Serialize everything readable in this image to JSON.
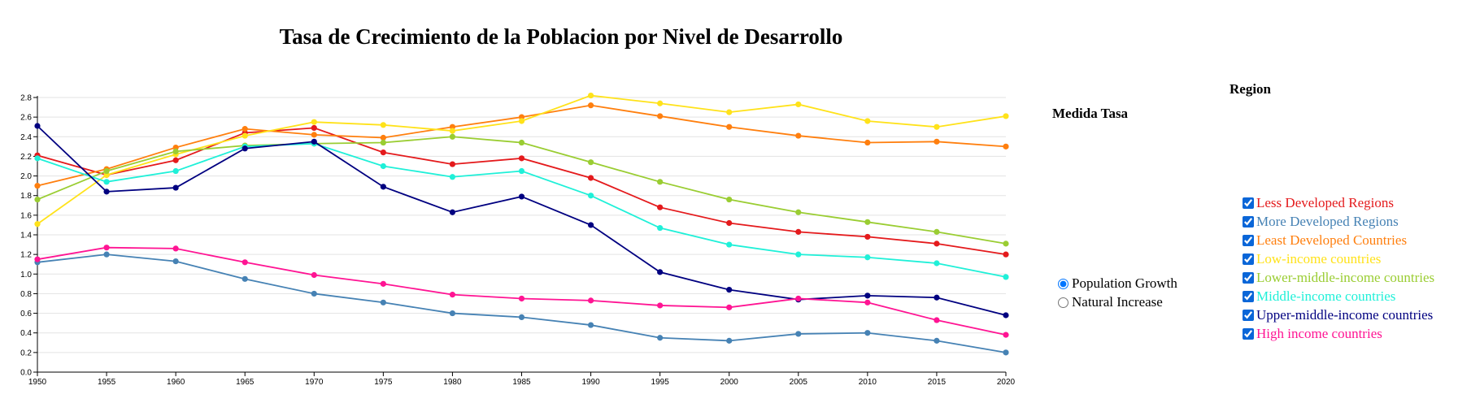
{
  "page": {
    "title": "Tasa de Crecimiento de la Poblacion por Nivel de Desarrollo"
  },
  "measure": {
    "title": "Medida Tasa",
    "options": [
      {
        "label": "Population Growth",
        "checked": true
      },
      {
        "label": "Natural Increase",
        "checked": false
      }
    ]
  },
  "region": {
    "title": "Region",
    "items": [
      {
        "label": "Less Developed Regions",
        "color": "#e41a1c",
        "checked": true
      },
      {
        "label": "More Developed Regions",
        "color": "#4682b4",
        "checked": true
      },
      {
        "label": "Least Developed Countries",
        "color": "#ff7f0e",
        "checked": true
      },
      {
        "label": "Low-income countries",
        "color": "#ffe21a",
        "checked": true
      },
      {
        "label": "Lower-middle-income countries",
        "color": "#9acd32",
        "checked": true
      },
      {
        "label": "Middle-income countries",
        "color": "#1ff0d8",
        "checked": true
      },
      {
        "label": "Upper-middle-income countries",
        "color": "#000080",
        "checked": true
      },
      {
        "label": "High income countries",
        "color": "#ff1493",
        "checked": true
      }
    ]
  },
  "chart_data": {
    "type": "line",
    "title": "Tasa de Crecimiento de la Poblacion por Nivel de Desarrollo",
    "x": [
      1950,
      1955,
      1960,
      1965,
      1970,
      1975,
      1980,
      1985,
      1990,
      1995,
      2000,
      2005,
      2010,
      2015,
      2020
    ],
    "xlim": [
      1950,
      2020
    ],
    "ylim": [
      0.0,
      2.8
    ],
    "yticks": [
      0.0,
      0.2,
      0.4,
      0.6,
      0.8,
      1.0,
      1.2,
      1.4,
      1.6,
      1.8,
      2.0,
      2.2,
      2.4,
      2.6,
      2.8
    ],
    "grid": true,
    "series": [
      {
        "name": "Less Developed Regions",
        "color": "#e41a1c",
        "values": [
          2.21,
          2.01,
          2.16,
          2.44,
          2.49,
          2.24,
          2.12,
          2.18,
          1.98,
          1.68,
          1.52,
          1.43,
          1.38,
          1.31,
          1.2
        ]
      },
      {
        "name": "More Developed Regions",
        "color": "#4682b4",
        "values": [
          1.12,
          1.2,
          1.13,
          0.95,
          0.8,
          0.71,
          0.6,
          0.56,
          0.48,
          0.35,
          0.32,
          0.39,
          0.4,
          0.32,
          0.2
        ]
      },
      {
        "name": "Least Developed Countries",
        "color": "#ff7f0e",
        "values": [
          1.9,
          2.07,
          2.29,
          2.48,
          2.42,
          2.39,
          2.5,
          2.6,
          2.72,
          2.61,
          2.5,
          2.41,
          2.34,
          2.35,
          2.3
        ]
      },
      {
        "name": "Low-income countries",
        "color": "#ffe21a",
        "values": [
          1.51,
          2.01,
          2.22,
          2.41,
          2.55,
          2.52,
          2.46,
          2.56,
          2.82,
          2.74,
          2.65,
          2.73,
          2.56,
          2.5,
          2.61
        ]
      },
      {
        "name": "Lower-middle-income countries",
        "color": "#9acd32",
        "values": [
          1.76,
          2.05,
          2.25,
          2.31,
          2.33,
          2.34,
          2.4,
          2.34,
          2.14,
          1.94,
          1.76,
          1.63,
          1.53,
          1.43,
          1.31
        ]
      },
      {
        "name": "Middle-income countries",
        "color": "#1ff0d8",
        "values": [
          2.18,
          1.94,
          2.05,
          2.3,
          2.33,
          2.1,
          1.99,
          2.05,
          1.8,
          1.47,
          1.3,
          1.2,
          1.17,
          1.11,
          0.97
        ]
      },
      {
        "name": "Upper-middle-income countries",
        "color": "#000080",
        "values": [
          2.51,
          1.84,
          1.88,
          2.28,
          2.35,
          1.89,
          1.63,
          1.79,
          1.5,
          1.02,
          0.84,
          0.74,
          0.78,
          0.76,
          0.58
        ]
      },
      {
        "name": "High income countries",
        "color": "#ff1493",
        "values": [
          1.15,
          1.27,
          1.26,
          1.12,
          0.99,
          0.9,
          0.79,
          0.75,
          0.73,
          0.68,
          0.66,
          0.75,
          0.71,
          0.53,
          0.38
        ]
      }
    ]
  }
}
